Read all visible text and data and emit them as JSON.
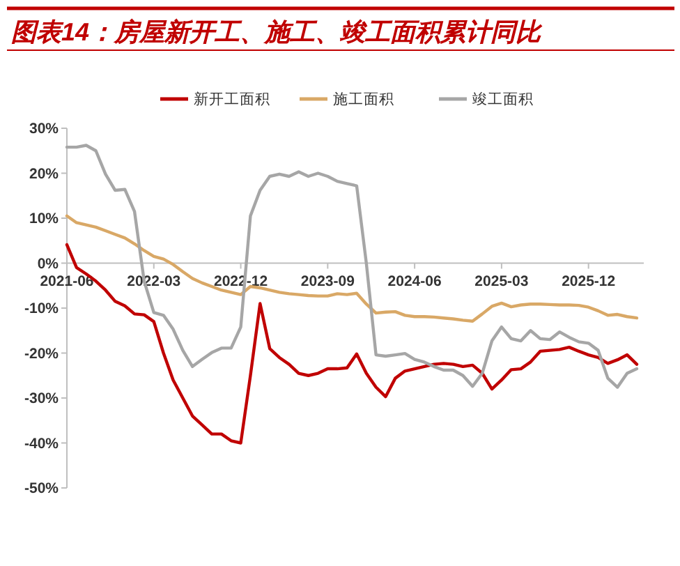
{
  "chart_data": {
    "type": "line",
    "title": "图表14：房屋新开工、施工、竣工面积累计同比",
    "categories": [
      "2021-06",
      null,
      null,
      null,
      null,
      null,
      null,
      null,
      null,
      "2022-03",
      null,
      null,
      null,
      null,
      null,
      null,
      null,
      null,
      "2022-12",
      null,
      null,
      null,
      null,
      null,
      null,
      null,
      null,
      "2023-09",
      null,
      null,
      null,
      null,
      null,
      null,
      null,
      null,
      "2024-06",
      null,
      null,
      null,
      null,
      null,
      null,
      null,
      null,
      "2025-03",
      null,
      null,
      null,
      null,
      null,
      null,
      null,
      null,
      "2025-12",
      null,
      null,
      null,
      null,
      null
    ],
    "series": [
      {
        "name": "新开工面积",
        "color": "#c00000",
        "values": [
          4.1,
          -1,
          -2.4,
          -4,
          -6,
          -8.5,
          -9.5,
          -11.3,
          -11.5,
          -13,
          -20,
          -26,
          -30,
          -34,
          -36,
          -38,
          -38,
          -39.5,
          -40,
          -25,
          -9,
          -19,
          -21,
          -22.5,
          -24.5,
          -25,
          -24.5,
          -23.5,
          -23.5,
          -23.3,
          -20.2,
          -24.5,
          -27.6,
          -29.7,
          -25.6,
          -24,
          -23.5,
          -23,
          -22.5,
          -22.3,
          -22.5,
          -23,
          -22.7,
          -24.5,
          -28,
          -26,
          -23.7,
          -23.5,
          -22,
          -19.6,
          -19.4,
          -19.2,
          -18.7,
          -19.6,
          -20.4,
          -21,
          -22.3,
          -21.5,
          -20.4,
          -22.5
        ]
      },
      {
        "name": "施工面积",
        "color": "#d9a866",
        "values": [
          10.5,
          9,
          8.5,
          8,
          7.2,
          6.4,
          5.6,
          4.3,
          2.8,
          1.5,
          0.9,
          -0.3,
          -1.9,
          -3.4,
          -4.4,
          -5.2,
          -6,
          -6.5,
          -7,
          -5.2,
          -5.5,
          -6,
          -6.5,
          -6.8,
          -7,
          -7.2,
          -7.3,
          -7.3,
          -6.8,
          -7,
          -6.7,
          -9.1,
          -11.1,
          -10.9,
          -10.8,
          -11.6,
          -11.9,
          -11.9,
          -12,
          -12.2,
          -12.4,
          -12.7,
          -12.9,
          -11.3,
          -9.6,
          -8.9,
          -9.7,
          -9.3,
          -9.1,
          -9.1,
          -9.2,
          -9.3,
          -9.3,
          -9.4,
          -9.8,
          -10.6,
          -11.6,
          -11.4,
          -11.9,
          -12.2
        ]
      },
      {
        "name": "竣工面积",
        "color": "#a6a6a6",
        "values": [
          25.8,
          25.8,
          26.2,
          25,
          19.8,
          16.2,
          16.4,
          11.5,
          -4,
          -11,
          -11.6,
          -14.7,
          -19.4,
          -23,
          -21.4,
          -19.9,
          -18.9,
          -18.9,
          -14.2,
          10.5,
          16.2,
          19.3,
          19.8,
          19.3,
          20.3,
          19.3,
          20,
          19.3,
          18.2,
          17.7,
          17.2,
          0,
          -20.4,
          -20.7,
          -20.4,
          -20.1,
          -21.4,
          -22,
          -23,
          -23.8,
          -23.8,
          -25,
          -27.4,
          -24.5,
          -17.3,
          -14.2,
          -16.8,
          -17.3,
          -15,
          -16.8,
          -17,
          -15.3,
          -16.5,
          -17.5,
          -17.8,
          -19.4,
          -25.6,
          -27.6,
          -24.5,
          -23.5
        ]
      }
    ],
    "ylim": [
      -50,
      30
    ],
    "yticks": [
      {
        "value": -50,
        "label": "-50%"
      },
      {
        "value": -40,
        "label": "-40%"
      },
      {
        "value": -30,
        "label": "-30%"
      },
      {
        "value": -20,
        "label": "-20%"
      },
      {
        "value": -10,
        "label": "-10%"
      },
      {
        "value": 0,
        "label": "0%"
      },
      {
        "value": 10,
        "label": "10%"
      },
      {
        "value": 20,
        "label": "20%"
      },
      {
        "value": 30,
        "label": "30%"
      }
    ],
    "grid": false,
    "legend": "top",
    "marker": "none",
    "line_style": "solid"
  }
}
